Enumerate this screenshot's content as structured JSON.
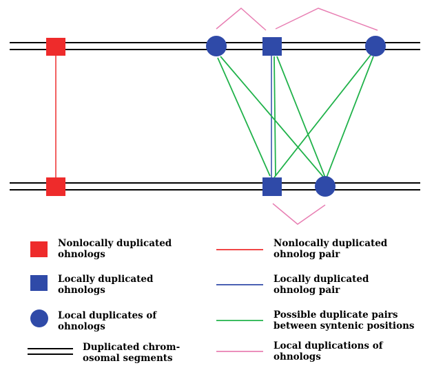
{
  "colors": {
    "nonlocal_red": "#ee2b2b",
    "local_blue": "#2f4aa8",
    "possible_green": "#20b24a",
    "local_pink": "#e87fb3",
    "chromosome_black": "#000000"
  },
  "legend": {
    "left": [
      {
        "icon": "red-square-icon",
        "line1": "Nonlocally duplicated",
        "line2": "ohnologs"
      },
      {
        "icon": "blue-square-icon",
        "line1": "Locally duplicated",
        "line2": "ohnologs"
      },
      {
        "icon": "blue-circle-icon",
        "line1": "Local duplicates of",
        "line2": "ohnologs"
      },
      {
        "icon": "double-line-icon",
        "line1": "Duplicated chrom-",
        "line2": "osomal segments"
      }
    ],
    "right": [
      {
        "icon": "red-line-icon",
        "line1": "Nonlocally duplicated",
        "line2": "ohnolog pair"
      },
      {
        "icon": "blue-line-icon",
        "line1": "Locally duplicated",
        "line2": "ohnolog pair"
      },
      {
        "icon": "green-line-icon",
        "line1": "Possible duplicate pairs",
        "line2": "between syntenic positions"
      },
      {
        "icon": "pink-line-icon",
        "line1": "Local duplications of",
        "line2": "ohnologs"
      }
    ]
  }
}
